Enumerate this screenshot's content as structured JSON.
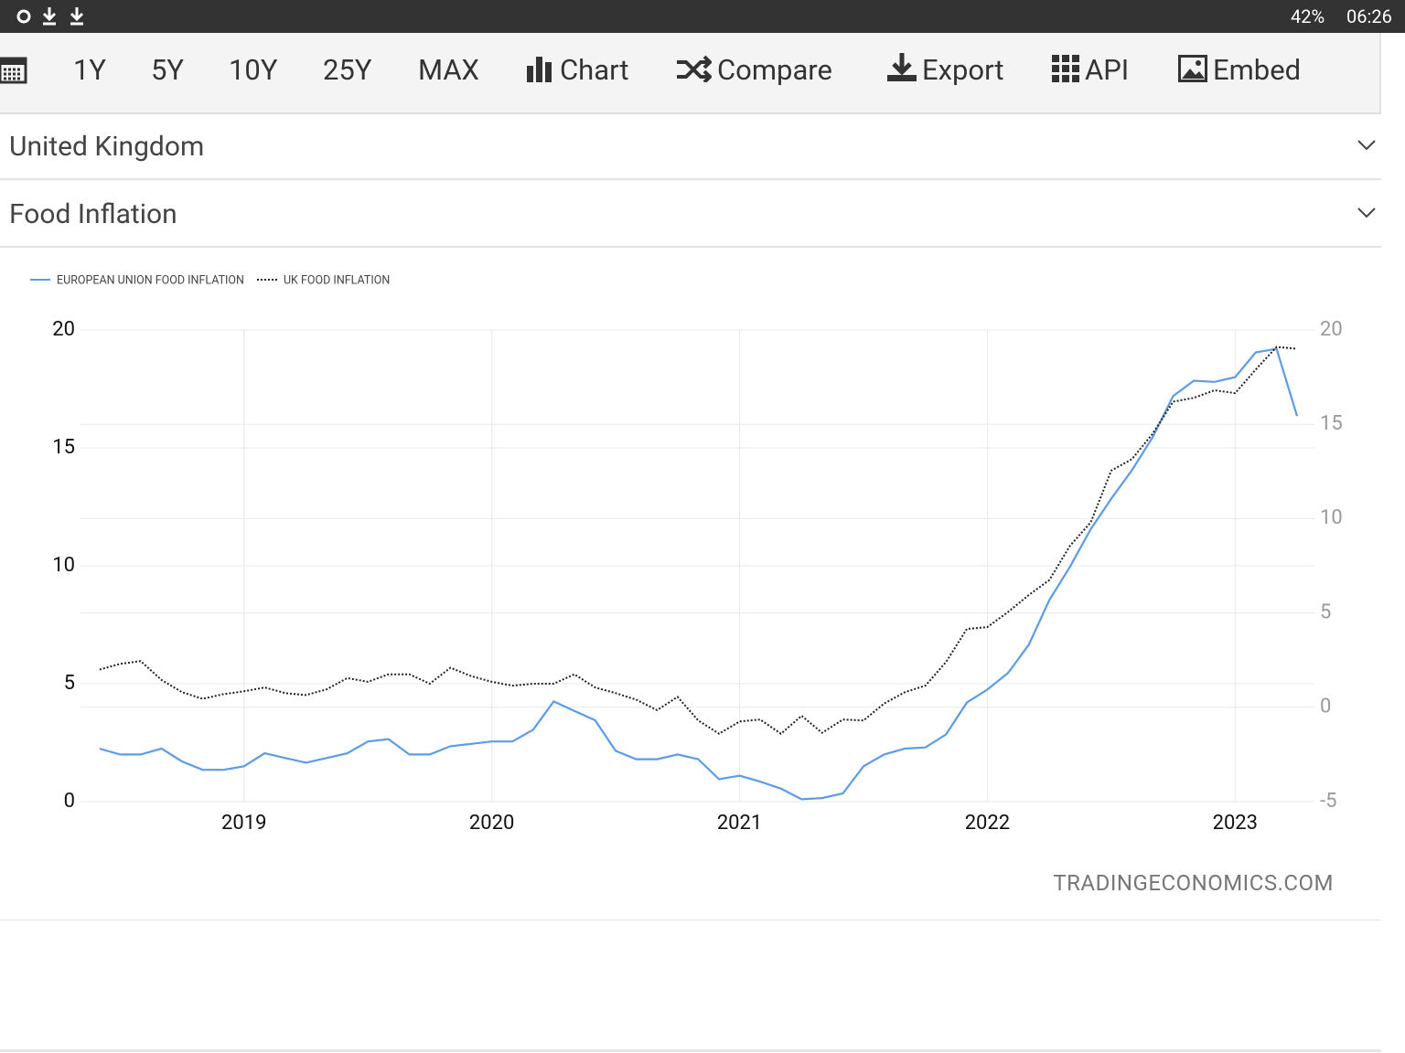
{
  "status_bar": {
    "battery": "42%",
    "time": "06:26"
  },
  "toolbar": {
    "ranges": [
      "1Y",
      "5Y",
      "10Y",
      "25Y",
      "MAX"
    ],
    "actions": [
      "Chart",
      "Compare",
      "Export",
      "API",
      "Embed"
    ]
  },
  "selectors": [
    "United Kingdom",
    "Food Inflation"
  ],
  "watermark": "TRADINGECONOMICS.COM",
  "chart_data": {
    "type": "line",
    "legend": "top-left",
    "grid": true,
    "x": [
      2018.417,
      2018.5,
      2018.583,
      2018.667,
      2018.75,
      2018.833,
      2018.917,
      2019,
      2019.083,
      2019.167,
      2019.25,
      2019.333,
      2019.417,
      2019.5,
      2019.583,
      2019.667,
      2019.75,
      2019.833,
      2019.917,
      2020,
      2020.083,
      2020.167,
      2020.25,
      2020.333,
      2020.417,
      2020.5,
      2020.583,
      2020.667,
      2020.75,
      2020.833,
      2020.917,
      2021,
      2021.083,
      2021.167,
      2021.25,
      2021.333,
      2021.417,
      2021.5,
      2021.583,
      2021.667,
      2021.75,
      2021.833,
      2021.917,
      2022,
      2022.083,
      2022.167,
      2022.25,
      2022.333,
      2022.417,
      2022.5,
      2022.583,
      2022.667,
      2022.75,
      2022.833,
      2022.917,
      2023,
      2023.083,
      2023.167,
      2023.25
    ],
    "xlim": [
      2018.34,
      2023.32
    ],
    "xticks": [
      2019,
      2020,
      2021,
      2022,
      2023
    ],
    "ylim": [
      0,
      20
    ],
    "yticks": [
      0,
      5,
      10,
      15,
      20
    ],
    "y2lim": [
      -5,
      20
    ],
    "y2ticks": [
      -5,
      0,
      5,
      10,
      15,
      20
    ],
    "series": [
      {
        "name": "EUROPEAN UNION FOOD INFLATION",
        "color": "#5b9be8",
        "line_style": "solid",
        "axis": "y",
        "values": [
          2.25,
          2.0,
          2.0,
          2.25,
          1.7,
          1.35,
          1.35,
          1.5,
          2.05,
          1.85,
          1.65,
          1.85,
          2.05,
          2.55,
          2.65,
          2.0,
          2.0,
          2.35,
          2.45,
          2.55,
          2.55,
          3.05,
          4.25,
          3.85,
          3.45,
          2.15,
          1.8,
          1.8,
          2.0,
          1.8,
          0.95,
          1.1,
          0.85,
          0.55,
          0.1,
          0.15,
          0.35,
          1.5,
          2.0,
          2.25,
          2.3,
          2.85,
          4.2,
          4.75,
          5.45,
          6.65,
          8.55,
          9.95,
          11.55,
          12.85,
          14.05,
          15.45,
          17.2,
          17.85,
          17.8,
          18.0,
          19.05,
          19.2,
          16.35
        ]
      },
      {
        "name": "UK FOOD INFLATION",
        "color": "#222222",
        "line_style": "dotted",
        "axis": "y2",
        "values": [
          2.0,
          2.3,
          2.45,
          1.45,
          0.8,
          0.45,
          0.7,
          0.85,
          1.05,
          0.75,
          0.65,
          0.95,
          1.55,
          1.35,
          1.75,
          1.75,
          1.25,
          2.1,
          1.65,
          1.35,
          1.15,
          1.25,
          1.25,
          1.75,
          1.05,
          0.75,
          0.4,
          -0.15,
          0.55,
          -0.7,
          -1.4,
          -0.75,
          -0.65,
          -1.4,
          -0.45,
          -1.35,
          -0.65,
          -0.7,
          0.2,
          0.8,
          1.15,
          2.4,
          4.15,
          4.25,
          5.05,
          5.95,
          6.75,
          8.55,
          9.8,
          12.55,
          13.15,
          14.5,
          16.2,
          16.4,
          16.8,
          16.65,
          17.9,
          19.1,
          19.0
        ]
      }
    ]
  }
}
